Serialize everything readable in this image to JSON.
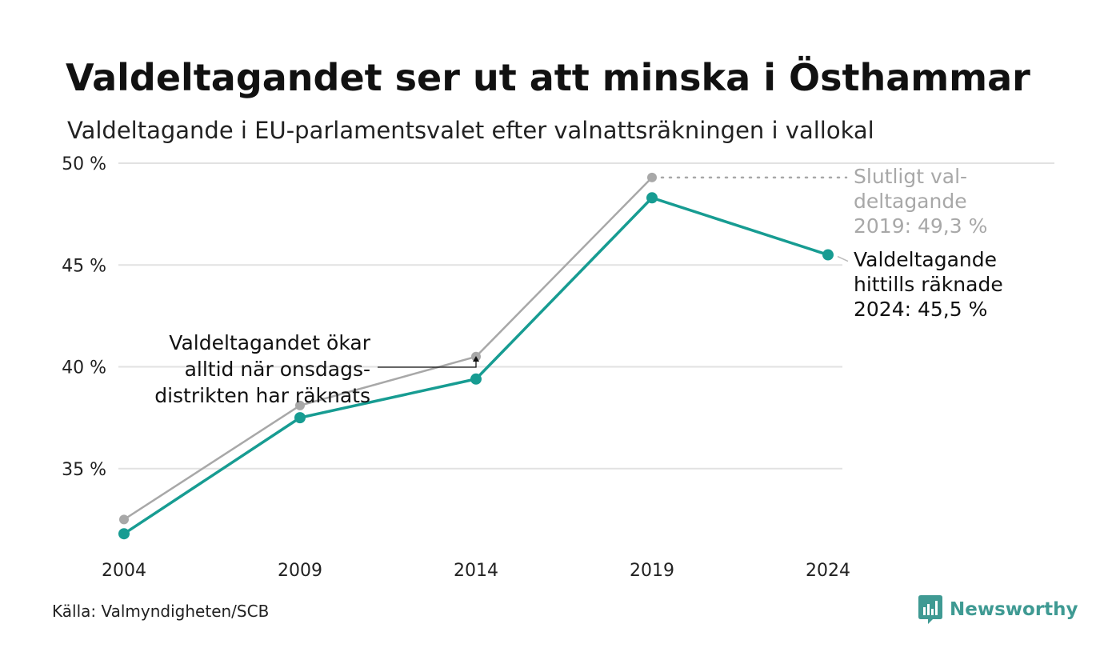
{
  "header": {
    "title": "Valdeltagandet ser ut att minska i Östhammar",
    "subtitle": "Valdeltagande i EU-parlamentsvalet efter valnattsräkningen i vallokal"
  },
  "chart_data": {
    "type": "line",
    "x": [
      2004,
      2009,
      2014,
      2019,
      2024
    ],
    "ylim": [
      31,
      50
    ],
    "yticks": [
      35,
      40,
      45,
      50
    ],
    "ytick_labels": [
      "35 %",
      "40 %",
      "45 %",
      "50 %"
    ],
    "xtick_labels": [
      "2004",
      "2009",
      "2014",
      "2019",
      "2024"
    ],
    "grid": true,
    "series": [
      {
        "key": "final",
        "values": [
          32.5,
          38.1,
          40.5,
          49.3,
          null
        ],
        "color": "#a8a8a8"
      },
      {
        "key": "counted",
        "values": [
          31.8,
          37.5,
          39.4,
          48.3,
          45.5
        ],
        "color": "#179c92"
      }
    ],
    "annotations": {
      "final_label": [
        "Slutligt val-",
        "deltagande",
        "2019: 49,3 %"
      ],
      "counted_label": [
        "Valdeltagande",
        "hittills räknade",
        "2024: 45,5 %"
      ],
      "note": [
        "Valdeltagandet ökar",
        "alltid när onsdags-",
        "distrikten har räknats"
      ]
    }
  },
  "footer": {
    "source": "Källa: Valmyndigheten/SCB",
    "brand": "Newsworthy",
    "brand_icon": "bar-chart-logo-icon",
    "brand_color": "#3f9a93"
  }
}
